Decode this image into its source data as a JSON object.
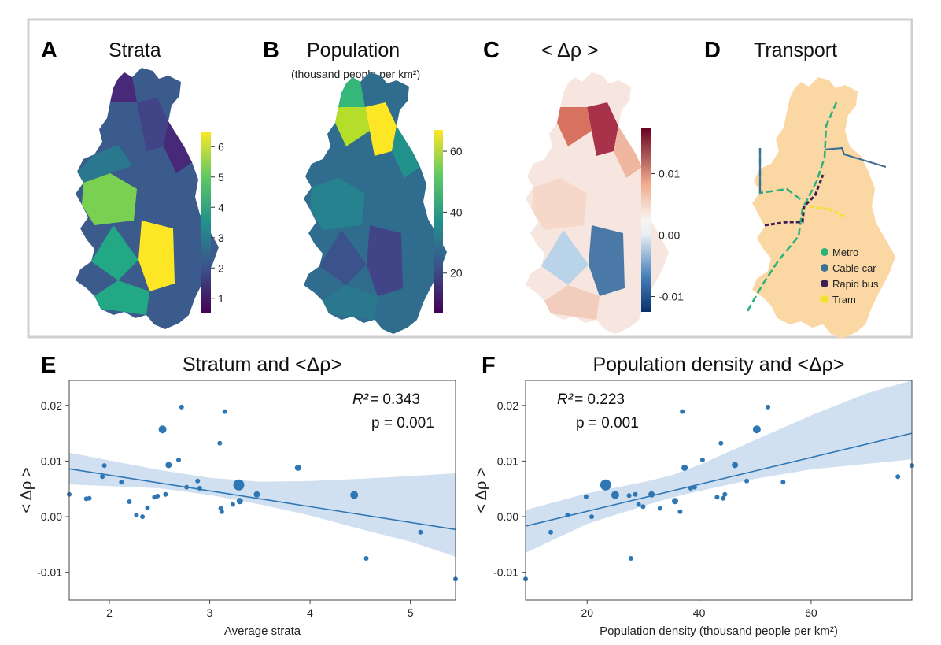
{
  "colors": {
    "panel_border": "#cfcfcf",
    "point": "#2f77b4",
    "line": "#2f77b4",
    "ci_band": "#c9dbee",
    "metro": "#2bb17a",
    "cable": "#3f6e96",
    "rapid": "#3b1f55",
    "tram": "#f2e22a",
    "base_map": "#fbd7a4",
    "unknown_zone": "#c5c8df"
  },
  "maps": {
    "A": {
      "letter": "A",
      "title": "Strata",
      "colorbar_ticks": [
        "1",
        "2",
        "3",
        "4",
        "5",
        "6"
      ]
    },
    "B": {
      "letter": "B",
      "title": "Population",
      "subtitle": "(thousand people per km²)",
      "colorbar_ticks": [
        "20",
        "40",
        "60"
      ]
    },
    "C": {
      "letter": "C",
      "title": "< Δρ >",
      "colorbar_ticks": [
        "-0.01",
        "0.00",
        "0.01"
      ]
    },
    "D": {
      "letter": "D",
      "title": "Transport",
      "legend": [
        {
          "label": "Metro",
          "color_key": "metro"
        },
        {
          "label": "Cable car",
          "color_key": "cable"
        },
        {
          "label": "Rapid bus",
          "color_key": "rapid"
        },
        {
          "label": "Tram",
          "color_key": "tram"
        }
      ]
    }
  },
  "chart_data": [
    {
      "id": "E",
      "letter": "E",
      "type": "scatter",
      "title": "Stratum and <Δρ>",
      "xlabel": "Average strata",
      "ylabel": "< Δρ >",
      "xlim": [
        1.6,
        5.45
      ],
      "ylim": [
        -0.015,
        0.0245
      ],
      "xticks": [
        2,
        3,
        4,
        5
      ],
      "xtick_labels": [
        "2",
        "3",
        "4",
        "5"
      ],
      "yticks": [
        -0.01,
        0.0,
        0.01,
        0.02
      ],
      "ytick_labels": [
        "-0.01",
        "0.00",
        "0.01",
        "0.02"
      ],
      "annotation": {
        "r2_label": "R²",
        "r2_value": "= 0.343",
        "p_text": "p = 0.001"
      },
      "fit": {
        "x": [
          1.6,
          5.45
        ],
        "y": [
          0.0086,
          -0.0023
        ]
      },
      "ci_upper": {
        "x": [
          1.6,
          2.5,
          3.0,
          3.5,
          4.0,
          4.5,
          5.0,
          5.45
        ],
        "y": [
          0.0115,
          0.0084,
          0.007,
          0.0063,
          0.0064,
          0.0068,
          0.0073,
          0.0078
        ]
      },
      "ci_lower": {
        "x": [
          1.6,
          2.5,
          3.0,
          3.5,
          4.0,
          4.5,
          5.0,
          5.45
        ],
        "y": [
          0.0058,
          0.0051,
          0.0039,
          0.0022,
          0.0002,
          -0.0022,
          -0.0045,
          -0.0072
        ]
      },
      "points": [
        {
          "x": 1.6,
          "y": 0.004,
          "size": 3
        },
        {
          "x": 1.77,
          "y": 0.0032,
          "size": 3
        },
        {
          "x": 1.8,
          "y": 0.0033,
          "size": 3
        },
        {
          "x": 1.93,
          "y": 0.0072,
          "size": 3
        },
        {
          "x": 1.95,
          "y": 0.0092,
          "size": 3
        },
        {
          "x": 2.12,
          "y": 0.0062,
          "size": 3
        },
        {
          "x": 2.2,
          "y": 0.0027,
          "size": 3
        },
        {
          "x": 2.27,
          "y": 0.0003,
          "size": 3
        },
        {
          "x": 2.33,
          "y": 0.0,
          "size": 3
        },
        {
          "x": 2.38,
          "y": 0.0016,
          "size": 3
        },
        {
          "x": 2.45,
          "y": 0.0035,
          "size": 3
        },
        {
          "x": 2.48,
          "y": 0.0037,
          "size": 3
        },
        {
          "x": 2.53,
          "y": 0.0157,
          "size": 5
        },
        {
          "x": 2.56,
          "y": 0.004,
          "size": 3
        },
        {
          "x": 2.59,
          "y": 0.0093,
          "size": 4
        },
        {
          "x": 2.69,
          "y": 0.0102,
          "size": 3
        },
        {
          "x": 2.72,
          "y": 0.0197,
          "size": 3
        },
        {
          "x": 2.77,
          "y": 0.0053,
          "size": 3
        },
        {
          "x": 2.88,
          "y": 0.0064,
          "size": 3
        },
        {
          "x": 2.9,
          "y": 0.0051,
          "size": 3
        },
        {
          "x": 3.1,
          "y": 0.0132,
          "size": 3
        },
        {
          "x": 3.11,
          "y": 0.0015,
          "size": 3
        },
        {
          "x": 3.12,
          "y": 0.0009,
          "size": 3
        },
        {
          "x": 3.15,
          "y": 0.0189,
          "size": 3
        },
        {
          "x": 3.23,
          "y": 0.0022,
          "size": 3
        },
        {
          "x": 3.29,
          "y": 0.0057,
          "size": 7
        },
        {
          "x": 3.3,
          "y": 0.0028,
          "size": 4
        },
        {
          "x": 3.47,
          "y": 0.004,
          "size": 4
        },
        {
          "x": 3.88,
          "y": 0.0088,
          "size": 4
        },
        {
          "x": 4.44,
          "y": 0.0039,
          "size": 5
        },
        {
          "x": 4.56,
          "y": -0.0075,
          "size": 3
        },
        {
          "x": 5.1,
          "y": -0.0028,
          "size": 3
        },
        {
          "x": 5.45,
          "y": -0.0112,
          "size": 3
        }
      ]
    },
    {
      "id": "F",
      "letter": "F",
      "type": "scatter",
      "title": "Population density and <Δρ>",
      "xlabel": "Population density (thousand people per km²)",
      "ylabel": "< Δρ >",
      "xlim": [
        9,
        78
      ],
      "ylim": [
        -0.015,
        0.0245
      ],
      "xticks": [
        20,
        40,
        60
      ],
      "xtick_labels": [
        "20",
        "40",
        "60"
      ],
      "yticks": [
        -0.01,
        0.0,
        0.01,
        0.02
      ],
      "ytick_labels": [
        "-0.01",
        "0.00",
        "0.01",
        "0.02"
      ],
      "annotation": {
        "r2_label": "R²",
        "r2_value": "= 0.223",
        "p_text": "p = 0.001"
      },
      "fit": {
        "x": [
          9,
          78
        ],
        "y": [
          -0.0017,
          0.015
        ]
      },
      "ci_upper": {
        "x": [
          9,
          20,
          30,
          35,
          40,
          50,
          60,
          70,
          78
        ],
        "y": [
          0.0012,
          0.0042,
          0.0062,
          0.0074,
          0.0093,
          0.0138,
          0.0182,
          0.0222,
          0.0245
        ]
      },
      "ci_lower": {
        "x": [
          9,
          20,
          30,
          35,
          40,
          50,
          60,
          70,
          78
        ],
        "y": [
          -0.0065,
          -0.0013,
          0.0019,
          0.0034,
          0.0046,
          0.0068,
          0.0085,
          0.0095,
          0.0103
        ]
      },
      "points": [
        {
          "x": 9,
          "y": -0.0112,
          "size": 3
        },
        {
          "x": 13.5,
          "y": -0.0028,
          "size": 3
        },
        {
          "x": 16.5,
          "y": 0.0003,
          "size": 3
        },
        {
          "x": 19.8,
          "y": 0.0036,
          "size": 3
        },
        {
          "x": 20.8,
          "y": 0.0,
          "size": 3
        },
        {
          "x": 23.3,
          "y": 0.0057,
          "size": 7
        },
        {
          "x": 25,
          "y": 0.0039,
          "size": 5
        },
        {
          "x": 27.5,
          "y": 0.0038,
          "size": 3
        },
        {
          "x": 27.8,
          "y": -0.0075,
          "size": 3
        },
        {
          "x": 28.6,
          "y": 0.004,
          "size": 3
        },
        {
          "x": 29.2,
          "y": 0.0022,
          "size": 3
        },
        {
          "x": 30,
          "y": 0.0018,
          "size": 3
        },
        {
          "x": 31.5,
          "y": 0.004,
          "size": 4
        },
        {
          "x": 33,
          "y": 0.0015,
          "size": 3
        },
        {
          "x": 35.7,
          "y": 0.0028,
          "size": 4
        },
        {
          "x": 36.6,
          "y": 0.0009,
          "size": 3
        },
        {
          "x": 37,
          "y": 0.0189,
          "size": 3
        },
        {
          "x": 37.4,
          "y": 0.0088,
          "size": 4
        },
        {
          "x": 38.5,
          "y": 0.0051,
          "size": 3
        },
        {
          "x": 39.2,
          "y": 0.0053,
          "size": 3
        },
        {
          "x": 40.6,
          "y": 0.0102,
          "size": 3
        },
        {
          "x": 43.2,
          "y": 0.0035,
          "size": 3
        },
        {
          "x": 43.9,
          "y": 0.0132,
          "size": 3
        },
        {
          "x": 44.3,
          "y": 0.0033,
          "size": 3
        },
        {
          "x": 44.6,
          "y": 0.004,
          "size": 3
        },
        {
          "x": 46.4,
          "y": 0.0093,
          "size": 4
        },
        {
          "x": 48.5,
          "y": 0.0064,
          "size": 3
        },
        {
          "x": 50.3,
          "y": 0.0157,
          "size": 5
        },
        {
          "x": 52.3,
          "y": 0.0197,
          "size": 3
        },
        {
          "x": 55,
          "y": 0.0062,
          "size": 3
        },
        {
          "x": 75.5,
          "y": 0.0072,
          "size": 3
        },
        {
          "x": 78,
          "y": 0.0092,
          "size": 3
        }
      ]
    }
  ]
}
